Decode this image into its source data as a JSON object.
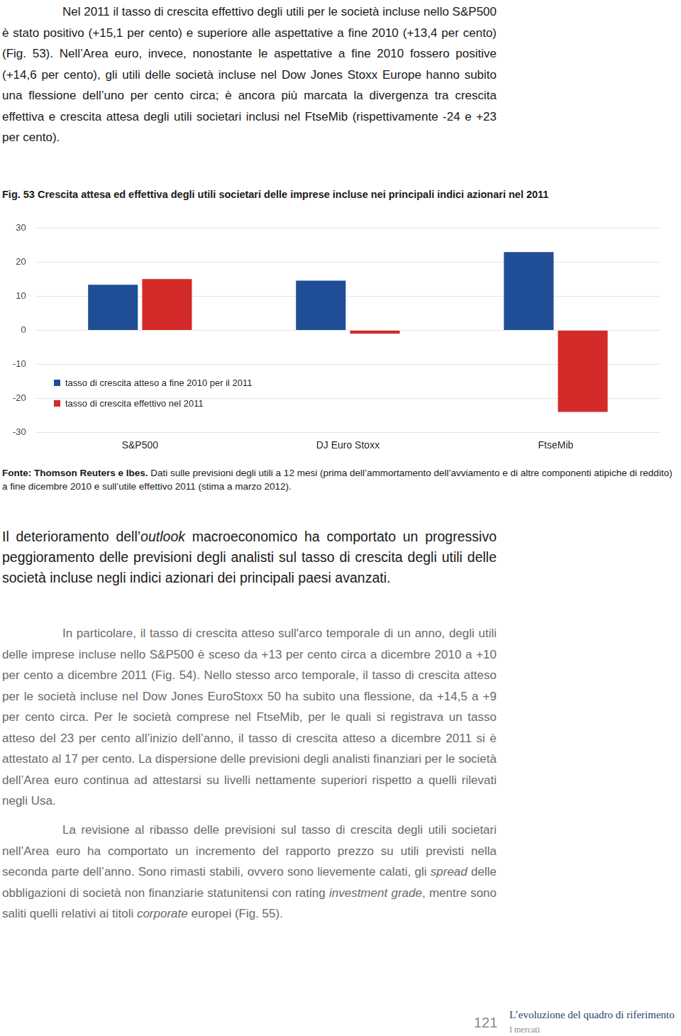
{
  "page": {
    "paragraph_1": [
      {
        "text": "Nel 2011 il tasso di crescita effettivo degli utili per le società incluse nello S&P500 è stato positivo (+15,1 per cento) e superiore alle aspettative a fine 2010 (+13,4 per cento) (Fig. 53). Nell’Area euro, invece, nonostante le aspettative a fine 2010 fossero positive (+14,6 per cento), gli utili delle società incluse nel Dow Jones Stoxx Europe hanno subito una flessione dell’uno per cento circa; è ancora più marcata la divergenza tra crescita effettiva e crescita attesa degli utili societari inclusi nel FtseMib (rispettivamente -24 e +23 per cento)."
      }
    ],
    "source": {
      "bold": "Fonte: Thomson Reuters e Ibes.",
      "text": "Dati sulle previsioni degli utili a 12 mesi (prima dell’ammortamento dell’avviamento e di altre componenti atipiche di reddito) a fine dicembre 2010 e sull’utile effettivo 2011 (stima a marzo 2012)."
    },
    "highlight": [
      {
        "text": "Il deterioramento dell’"
      },
      {
        "text": "outlook",
        "italic": true
      },
      {
        "text": " macroeconomico ha comportato un progressivo peggioramento delle previsioni degli analisti sul tasso di crescita degli utili delle società incluse negli indici azionari dei principali paesi avanzati."
      }
    ],
    "paragraph_2": [
      {
        "text": "In particolare, il tasso di crescita atteso sull'arco temporale di un anno, degli utili delle imprese incluse nello S&P500 è sceso da +13 per cento circa a dicembre 2010 a +10 per cento a dicembre 2011 (Fig. 54). Nello stesso arco temporale, il tasso di crescita atteso per le società incluse nel Dow Jones EuroStoxx 50 ha subito una flessione, da +14,5 a +9 per cento circa. Per le società comprese nel FtseMib, per le quali si registrava un tasso atteso del 23 per cento all’inizio dell’anno, il tasso di crescita atteso a dicembre 2011 si è attestato al 17 per cento. La dispersione delle previsioni degli analisti finanziari per le società dell’Area euro continua ad attestarsi su livelli nettamente superiori rispetto a quelli rilevati negli Usa."
      }
    ],
    "paragraph_3": [
      {
        "text": "La revisione al ribasso delle previsioni sul tasso di crescita degli utili societari nell’Area euro ha comportato un incremento del rapporto prezzo su utili previsti nella seconda parte dell’anno. Sono rimasti stabili, ovvero sono lievemente calati, gli "
      },
      {
        "text": "spread",
        "italic": true
      },
      {
        "text": " delle obbligazioni di società non finanziarie statunitensi con rating "
      },
      {
        "text": "investment grade",
        "italic": true
      },
      {
        "text": ", mentre sono saliti quelli relativi ai titoli "
      },
      {
        "text": "corporate",
        "italic": true
      },
      {
        "text": " europei (Fig. 55)."
      }
    ],
    "footer": {
      "page_number": "121",
      "title": "L’evoluzione del quadro di riferimento",
      "section": "I mercati"
    }
  },
  "chart_data": {
    "type": "bar",
    "title": "Fig. 53 Crescita attesa ed effettiva degli utili societari delle imprese incluse nei principali indici azionari nel 2011",
    "categories": [
      "S&P500",
      "DJ Euro Stoxx",
      "FtseMib"
    ],
    "series": [
      {
        "name": "tasso di crescita atteso a fine 2010 per il 2011",
        "color": "#1f4e96",
        "values": [
          13.4,
          14.6,
          23
        ]
      },
      {
        "name": "tasso di crescita effettivo nel 2011",
        "color": "#d42a2a",
        "values": [
          15.1,
          -1,
          -24
        ]
      }
    ],
    "ylim": [
      -30,
      30
    ],
    "yticks": [
      -30,
      -20,
      -10,
      0,
      10,
      20,
      30
    ],
    "grid": true,
    "legend": "lower left"
  }
}
